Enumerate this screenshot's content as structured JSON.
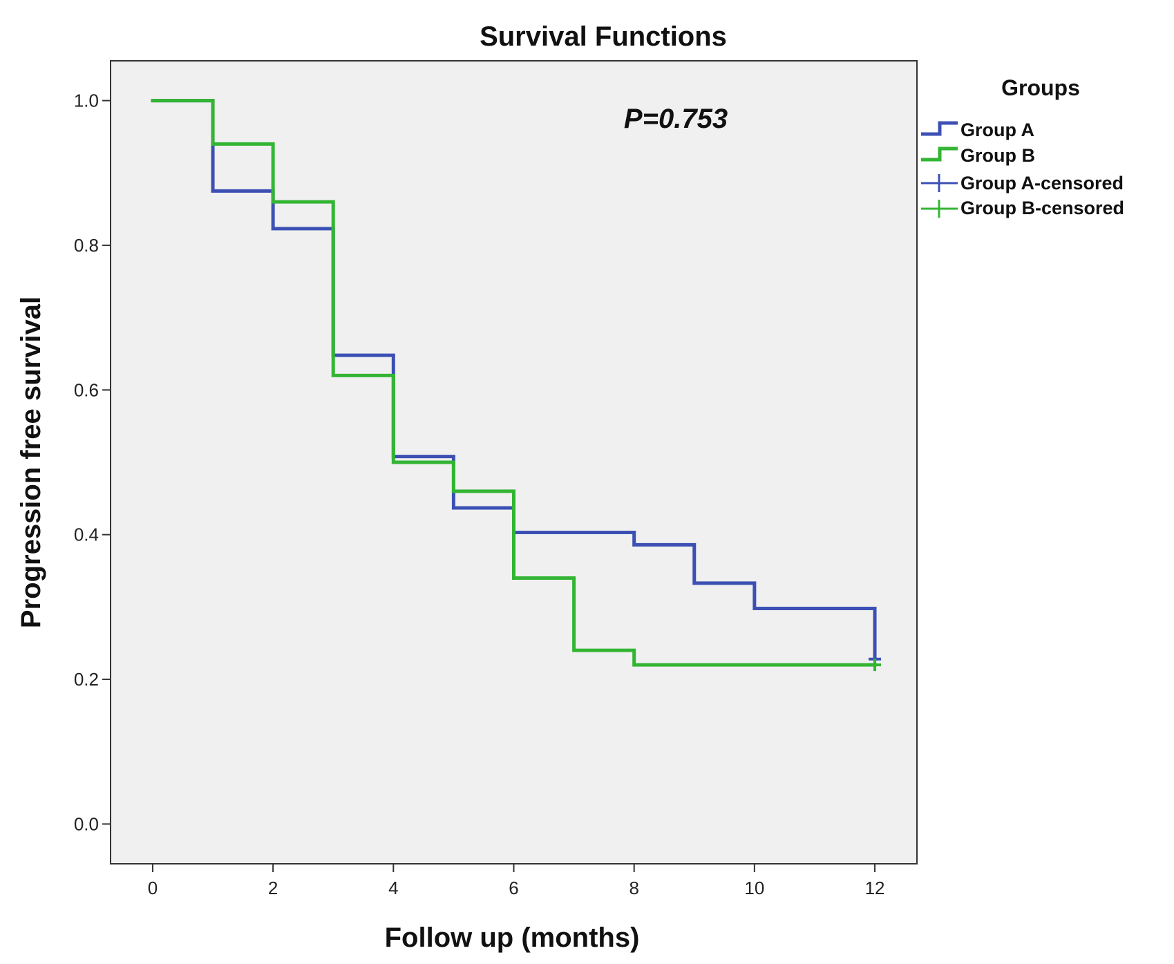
{
  "chart_data": {
    "type": "line",
    "step": true,
    "title": "Survival Functions",
    "xlabel": "Follow up (months)",
    "ylabel": "Progression free survival",
    "xlim": [
      -0.7,
      12.7
    ],
    "ylim": [
      -0.055,
      1.055
    ],
    "xticks": [
      0,
      2,
      4,
      6,
      8,
      10,
      12
    ],
    "xtick_labels": [
      "0",
      "2",
      "4",
      "6",
      "8",
      "10",
      "12"
    ],
    "yticks": [
      0.0,
      0.2,
      0.4,
      0.6,
      0.8,
      1.0
    ],
    "ytick_labels": [
      "0.0",
      "0.2",
      "0.4",
      "0.6",
      "0.8",
      "1.0"
    ],
    "grid": false,
    "annotation": "P=0.753",
    "legend": {
      "title": "Groups",
      "position": "right",
      "entries": [
        "Group A",
        "Group B",
        "Group A-censored",
        "Group B-censored"
      ]
    },
    "series": [
      {
        "name": "Group A",
        "color": "#3c50b4",
        "x": [
          0,
          1,
          2,
          3,
          4,
          5,
          6,
          8,
          9,
          10,
          12
        ],
        "y": [
          1.0,
          0.875,
          0.823,
          0.648,
          0.508,
          0.437,
          0.403,
          0.386,
          0.333,
          0.298,
          0.228
        ],
        "censored": [
          {
            "x": 12,
            "y": 0.228
          }
        ]
      },
      {
        "name": "Group B",
        "color": "#33b533",
        "x": [
          0,
          1,
          2,
          3,
          4,
          5,
          6,
          7,
          8,
          12
        ],
        "y": [
          1.0,
          0.94,
          0.86,
          0.62,
          0.5,
          0.46,
          0.34,
          0.24,
          0.22,
          0.22
        ],
        "censored": [
          {
            "x": 12,
            "y": 0.22
          }
        ]
      }
    ]
  }
}
